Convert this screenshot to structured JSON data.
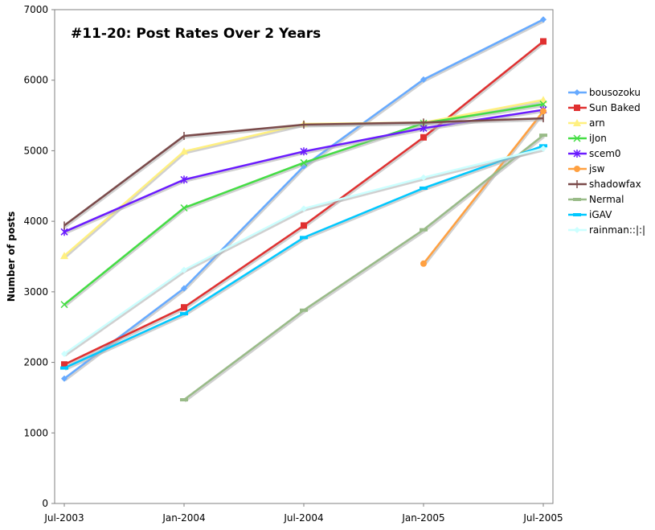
{
  "chart_data": {
    "type": "line",
    "title": "#11-20: Post Rates Over 2 Years",
    "xlabel": "",
    "ylabel": "Number of posts",
    "categories": [
      "Jul-2003",
      "Jan-2004",
      "Jul-2004",
      "Jan-2005",
      "Jul-2005"
    ],
    "ylim": [
      0,
      7000
    ],
    "yticks": [
      "0",
      "1000",
      "2000",
      "3000",
      "4000",
      "5000",
      "6000",
      "7000"
    ],
    "grid": false,
    "legend_position": "right",
    "series": [
      {
        "name": "bousozoku",
        "color": "#66aaff",
        "marker": "diamond",
        "values": [
          1770,
          3050,
          4780,
          6010,
          6860
        ]
      },
      {
        "name": "Sun Baked",
        "color": "#e03030",
        "marker": "square",
        "values": [
          1970,
          2780,
          3940,
          5190,
          6550
        ]
      },
      {
        "name": "arn",
        "color": "#fff080",
        "marker": "triangle",
        "values": [
          3510,
          4990,
          5380,
          5400,
          5720
        ]
      },
      {
        "name": "iJon",
        "color": "#44dd44",
        "marker": "x",
        "values": [
          2820,
          4190,
          4830,
          5390,
          5660
        ]
      },
      {
        "name": "scem0",
        "color": "#6a1aff",
        "marker": "star",
        "values": [
          3850,
          4590,
          4990,
          5320,
          5580
        ]
      },
      {
        "name": "jsw",
        "color": "#ffa040",
        "marker": "circle",
        "values": [
          null,
          null,
          null,
          3400,
          5560
        ]
      },
      {
        "name": "shadowfax",
        "color": "#7a4a4a",
        "marker": "plus",
        "values": [
          3940,
          5210,
          5370,
          5400,
          5460
        ]
      },
      {
        "name": "Nermal",
        "color": "#99bb88",
        "marker": "dash",
        "values": [
          null,
          1470,
          2740,
          3880,
          5220
        ]
      },
      {
        "name": "iGAV",
        "color": "#00c8ff",
        "marker": "dash",
        "values": [
          1920,
          2690,
          3770,
          4470,
          5070
        ]
      },
      {
        "name": "rainman::|:|",
        "color": "#ccffff",
        "marker": "diamond",
        "values": [
          2120,
          3310,
          4180,
          4620,
          5030
        ]
      }
    ]
  }
}
